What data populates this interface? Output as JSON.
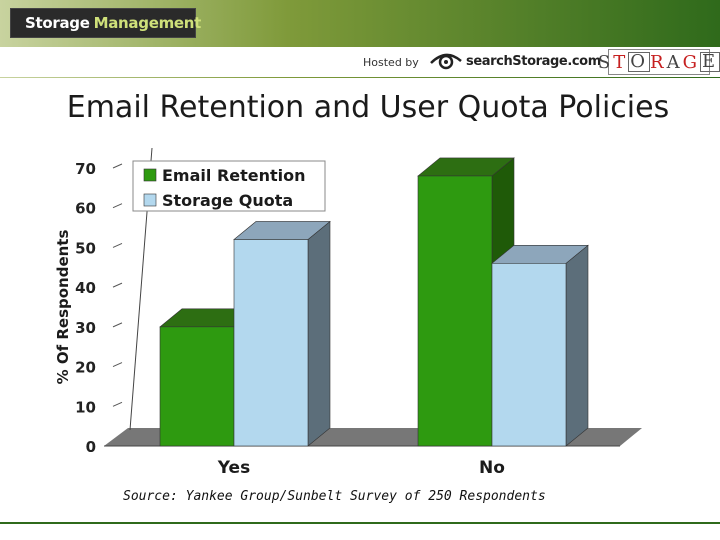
{
  "header": {
    "brand_main": "Storage",
    "brand_accent": "Management",
    "hosted_by": "Hosted by",
    "search_logo": "searchStorage.com",
    "magazine_logo": "STORAGE"
  },
  "slide": {
    "title": "Email Retention and User Quota Policies",
    "source": "Source: Yankee Group/Sunbelt Survey of 250 Respondents"
  },
  "colors": {
    "email_front": "#2e9a10",
    "email_side": "#1f5a08",
    "email_top": "#2d6e12",
    "quota_front": "#b3d8ee",
    "quota_side": "#5c6e7a",
    "quota_top": "#8da6bb",
    "floor": "#777777"
  },
  "chart_data": {
    "type": "bar",
    "categories": [
      "Yes",
      "No"
    ],
    "series": [
      {
        "name": "Email Retention",
        "values": [
          30,
          68
        ]
      },
      {
        "name": "Storage Quota",
        "values": [
          52,
          46
        ]
      }
    ],
    "ylabel": "% Of Respondents",
    "ylim": [
      0,
      70
    ],
    "yticks": [
      "0",
      "10",
      "20",
      "30",
      "40",
      "50",
      "60",
      "70"
    ],
    "legend_position": "top-left",
    "three_d": true
  }
}
